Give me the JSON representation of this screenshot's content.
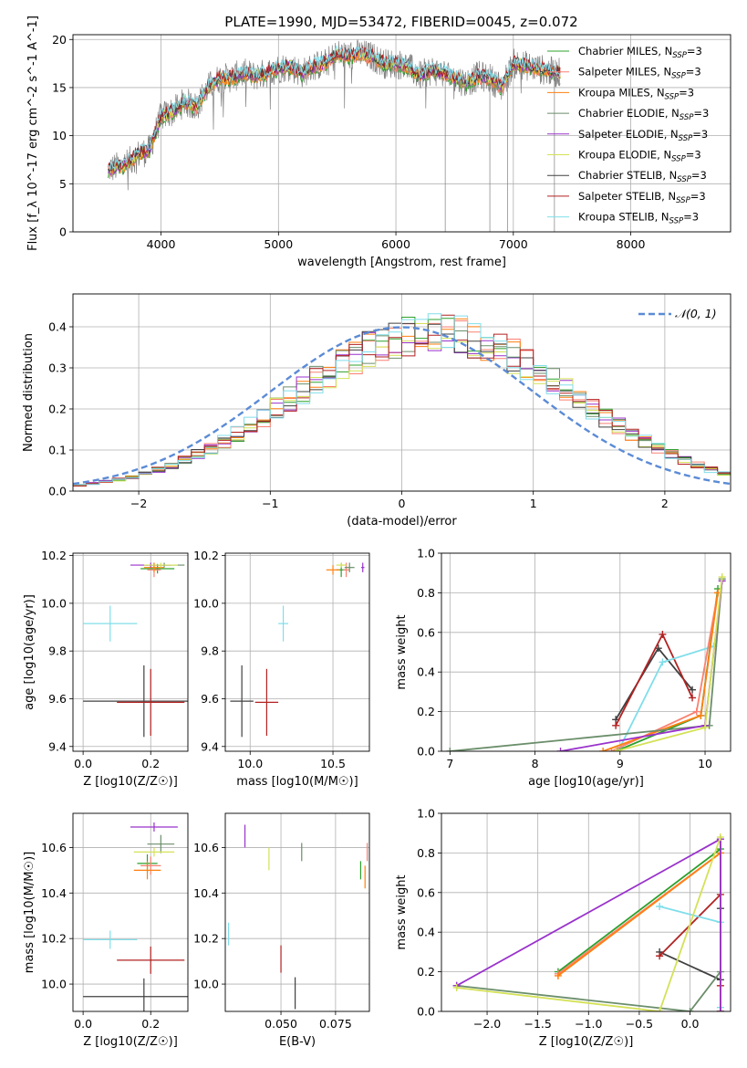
{
  "figure": {
    "title": "PLATE=1990, MJD=53472, FIBERID=0045, z=0.072"
  },
  "models": [
    {
      "name": "Chabrier MILES",
      "legend": "Chabrier MILES, N_SSP=3",
      "color": "#2ca02c"
    },
    {
      "name": "Salpeter MILES",
      "legend": "Salpeter MILES, N_SSP=3",
      "color": "#fa8072"
    },
    {
      "name": "Kroupa MILES",
      "legend": "Kroupa MILES, N_SSP=3",
      "color": "#ff7f0e"
    },
    {
      "name": "Chabrier ELODIE",
      "legend": "Chabrier ELODIE, N_SSP=3",
      "color": "#6b8e6b"
    },
    {
      "name": "Salpeter ELODIE",
      "legend": "Salpeter ELODIE, N_SSP=3",
      "color": "#9932cc"
    },
    {
      "name": "Kroupa ELODIE",
      "legend": "Kroupa ELODIE, N_SSP=3",
      "color": "#d4e157"
    },
    {
      "name": "Chabrier STELIB",
      "legend": "Chabrier STELIB, N_SSP=3",
      "color": "#404040"
    },
    {
      "name": "Salpeter STELIB",
      "legend": "Salpeter STELIB, N_SSP=3",
      "color": "#b22222"
    },
    {
      "name": "Kroupa STELIB",
      "legend": "Kroupa STELIB, N_SSP=3",
      "color": "#80deea"
    }
  ],
  "chart_data": [
    {
      "id": "spectrum",
      "type": "line",
      "title": "PLATE=1990, MJD=53472, FIBERID=0045, z=0.072",
      "xlabel": "wavelength [Angstrom, rest frame]",
      "ylabel": "Flux [f_λ 10^-17 erg cm^-2 s^-1 A^-1]",
      "xlim": [
        3250,
        8850
      ],
      "ylim": [
        0,
        20.5
      ],
      "xticks": [
        4000,
        5000,
        6000,
        7000,
        8000
      ],
      "yticks": [
        0,
        5,
        10,
        15,
        20
      ],
      "data_color": "#808080",
      "continuum": {
        "x": [
          3550,
          3700,
          3800,
          3900,
          4000,
          4100,
          4200,
          4300,
          4400,
          4500,
          4600,
          4700,
          4800,
          4900,
          5000,
          5100,
          5200,
          5300,
          5400,
          5500,
          5600,
          5700,
          5800,
          5900,
          6000,
          6100,
          6200,
          6300,
          6400,
          6500,
          6600,
          6700,
          6800,
          6900,
          7000,
          7100,
          7200,
          7300,
          7400
        ],
        "y": [
          6.5,
          7,
          8,
          8.5,
          12,
          12.5,
          13.5,
          13,
          15,
          16,
          16,
          16.5,
          16.2,
          16.5,
          17,
          17.2,
          16.5,
          17.2,
          17.5,
          18.5,
          18.3,
          18.5,
          18.2,
          17.5,
          17.5,
          17.2,
          16.2,
          16.8,
          16.5,
          16,
          15.5,
          16.2,
          16,
          15,
          17.5,
          17.3,
          17,
          16.7,
          16.5
        ]
      },
      "legend_loc": "upper right"
    },
    {
      "id": "residuals",
      "type": "histogram",
      "xlabel": "(data-model)/error",
      "ylabel": "Normed distribution",
      "xlim": [
        -2.5,
        2.5
      ],
      "ylim": [
        0,
        0.48
      ],
      "xticks": [
        -2,
        -1,
        0,
        1,
        2
      ],
      "yticks": [
        0.0,
        0.1,
        0.2,
        0.3,
        0.4
      ],
      "bin_width": 0.1,
      "reference": {
        "name": "N(0,1)",
        "label": "𝒩(0, 1)",
        "color": "#5b8bd6",
        "style": "dashed"
      },
      "legend_loc": "upper right"
    },
    {
      "id": "age_vs_Z",
      "type": "scatter",
      "xlabel": "Z [log10(Z/Z☉)]",
      "ylabel": "age [log10(age/yr)]",
      "xlim": [
        -0.03,
        0.31
      ],
      "ylim": [
        9.38,
        10.21
      ],
      "xticks": [
        0.0,
        0.2
      ],
      "yticks": [
        9.4,
        9.6,
        9.8,
        10.0,
        10.2
      ],
      "points": [
        {
          "model": "Chabrier STELIB",
          "x": 0.18,
          "xerr": 0.18,
          "y": 9.59,
          "yerr": 0.15
        },
        {
          "model": "Salpeter STELIB",
          "x": 0.2,
          "xerr": 0.1,
          "y": 9.585,
          "yerr": 0.14
        },
        {
          "model": "Kroupa STELIB",
          "x": 0.08,
          "xerr": 0.08,
          "y": 9.915,
          "yerr": 0.075
        },
        {
          "model": "Chabrier MILES",
          "x": 0.22,
          "xerr": 0.05,
          "y": 10.145,
          "yerr": 0.02
        },
        {
          "model": "Salpeter MILES",
          "x": 0.21,
          "xerr": 0.02,
          "y": 10.14,
          "yerr": 0.03
        },
        {
          "model": "Kroupa MILES",
          "x": 0.21,
          "xerr": 0.03,
          "y": 10.15,
          "yerr": 0.02
        },
        {
          "model": "Chabrier ELODIE",
          "x": 0.24,
          "xerr": 0.06,
          "y": 10.16,
          "yerr": 0.01
        },
        {
          "model": "Salpeter ELODIE",
          "x": 0.2,
          "xerr": 0.06,
          "y": 10.16,
          "yerr": 0.01
        },
        {
          "model": "Kroupa ELODIE",
          "x": 0.23,
          "xerr": 0.05,
          "y": 10.16,
          "yerr": 0.01
        }
      ]
    },
    {
      "id": "age_vs_mass",
      "type": "scatter",
      "xlabel": "mass [log10(M/M☉)]",
      "ylabel": "",
      "xlim": [
        9.85,
        10.72
      ],
      "ylim": [
        9.38,
        10.21
      ],
      "xticks": [
        10.0,
        10.5
      ],
      "yticks": [
        9.4,
        9.6,
        9.8,
        10.0,
        10.2
      ],
      "points": [
        {
          "model": "Chabrier STELIB",
          "x": 9.95,
          "xerr": 0.07,
          "y": 9.59,
          "yerr": 0.15
        },
        {
          "model": "Salpeter STELIB",
          "x": 10.1,
          "xerr": 0.07,
          "y": 9.585,
          "yerr": 0.14
        },
        {
          "model": "Kroupa STELIB",
          "x": 10.2,
          "xerr": 0.03,
          "y": 9.915,
          "yerr": 0.075
        },
        {
          "model": "Chabrier MILES",
          "x": 10.55,
          "xerr": 0.03,
          "y": 10.14,
          "yerr": 0.03
        },
        {
          "model": "Salpeter MILES",
          "x": 10.58,
          "xerr": 0.02,
          "y": 10.14,
          "yerr": 0.03
        },
        {
          "model": "Kroupa MILES",
          "x": 10.5,
          "xerr": 0.04,
          "y": 10.14,
          "yerr": 0.02
        },
        {
          "model": "Chabrier ELODIE",
          "x": 10.6,
          "xerr": 0.03,
          "y": 10.15,
          "yerr": 0.02
        },
        {
          "model": "Salpeter ELODIE",
          "x": 10.68,
          "xerr": 0.01,
          "y": 10.15,
          "yerr": 0.02
        },
        {
          "model": "Kroupa ELODIE",
          "x": 10.55,
          "xerr": 0.03,
          "y": 10.16,
          "yerr": 0.01
        }
      ]
    },
    {
      "id": "massweight_vs_age",
      "type": "line",
      "xlabel": "age [log10(age/yr)]",
      "ylabel": "mass weight",
      "xlim": [
        6.9,
        10.3
      ],
      "ylim": [
        0,
        1
      ],
      "xticks": [
        7,
        8,
        9,
        10
      ],
      "yticks": [
        0.0,
        0.2,
        0.4,
        0.6,
        0.8,
        1.0
      ],
      "series": [
        {
          "model": "Chabrier STELIB",
          "x": [
            8.95,
            9.45,
            9.85
          ],
          "y": [
            0.16,
            0.52,
            0.31
          ]
        },
        {
          "model": "Salpeter STELIB",
          "x": [
            8.95,
            9.5,
            9.85
          ],
          "y": [
            0.13,
            0.59,
            0.27
          ]
        },
        {
          "model": "Kroupa STELIB",
          "x": [
            9.0,
            9.5,
            10.1
          ],
          "y": [
            0.02,
            0.45,
            0.53
          ]
        },
        {
          "model": "Chabrier MILES",
          "x": [
            8.95,
            9.95,
            10.15
          ],
          "y": [
            0.0,
            0.18,
            0.82
          ]
        },
        {
          "model": "Salpeter MILES",
          "x": [
            8.9,
            9.9,
            10.15
          ],
          "y": [
            0.0,
            0.2,
            0.8
          ]
        },
        {
          "model": "Kroupa MILES",
          "x": [
            8.8,
            9.95,
            10.15
          ],
          "y": [
            0.0,
            0.18,
            0.8
          ]
        },
        {
          "model": "Chabrier ELODIE",
          "x": [
            7.0,
            10.05,
            10.2
          ],
          "y": [
            0.0,
            0.13,
            0.87
          ]
        },
        {
          "model": "Salpeter ELODIE",
          "x": [
            8.3,
            10.0,
            10.2
          ],
          "y": [
            0.0,
            0.13,
            0.86
          ]
        },
        {
          "model": "Kroupa ELODIE",
          "x": [
            8.95,
            10.0,
            10.2
          ],
          "y": [
            0.0,
            0.12,
            0.88
          ]
        }
      ]
    },
    {
      "id": "mass_vs_Z",
      "type": "scatter",
      "xlabel": "Z [log10(Z/Z☉)]",
      "ylabel": "mass [log10(M/M☉)]",
      "xlim": [
        -0.03,
        0.31
      ],
      "ylim": [
        9.88,
        10.75
      ],
      "xticks": [
        0.0,
        0.2
      ],
      "yticks": [
        10.0,
        10.2,
        10.4,
        10.6
      ],
      "points": [
        {
          "model": "Chabrier STELIB",
          "x": 0.18,
          "xerr": 0.18,
          "y": 9.945,
          "yerr": 0.08
        },
        {
          "model": "Salpeter STELIB",
          "x": 0.2,
          "xerr": 0.1,
          "y": 10.105,
          "yerr": 0.06
        },
        {
          "model": "Kroupa STELIB",
          "x": 0.08,
          "xerr": 0.08,
          "y": 10.195,
          "yerr": 0.04
        },
        {
          "model": "Chabrier MILES",
          "x": 0.19,
          "xerr": 0.03,
          "y": 10.53,
          "yerr": 0.04
        },
        {
          "model": "Salpeter MILES",
          "x": 0.2,
          "xerr": 0.03,
          "y": 10.52,
          "yerr": 0.04
        },
        {
          "model": "Kroupa MILES",
          "x": 0.19,
          "xerr": 0.04,
          "y": 10.5,
          "yerr": 0.04
        },
        {
          "model": "Chabrier ELODIE",
          "x": 0.23,
          "xerr": 0.04,
          "y": 10.615,
          "yerr": 0.04
        },
        {
          "model": "Salpeter ELODIE",
          "x": 0.21,
          "xerr": 0.07,
          "y": 10.69,
          "yerr": 0.02
        },
        {
          "model": "Kroupa ELODIE",
          "x": 0.21,
          "xerr": 0.06,
          "y": 10.58,
          "yerr": 0.02
        }
      ]
    },
    {
      "id": "mass_vs_ebv",
      "type": "scatter",
      "xlabel": "E(B-V)",
      "ylabel": "",
      "xlim": [
        0.0245,
        0.0905
      ],
      "ylim": [
        9.88,
        10.75
      ],
      "xticks": [
        0.05,
        0.075
      ],
      "xticklabels": [
        "0.050",
        "0.075"
      ],
      "yticks": [
        10.0,
        10.2,
        10.4,
        10.6
      ],
      "points": [
        {
          "model": "Kroupa STELIB",
          "x": 0.026,
          "yerr": 0.05,
          "y": 10.22
        },
        {
          "model": "Salpeter STELIB",
          "x": 0.05,
          "yerr": 0.06,
          "y": 10.11
        },
        {
          "model": "Chabrier STELIB",
          "x": 0.0565,
          "yerr": 0.07,
          "y": 9.96
        },
        {
          "model": "Chabrier ELODIE",
          "x": 0.0595,
          "yerr": 0.04,
          "y": 10.58
        },
        {
          "model": "Kroupa ELODIE",
          "x": 0.0445,
          "yerr": 0.05,
          "y": 10.55
        },
        {
          "model": "Salpeter ELODIE",
          "x": 0.0335,
          "yerr": 0.05,
          "y": 10.65
        },
        {
          "model": "Chabrier MILES",
          "x": 0.0865,
          "yerr": 0.04,
          "y": 10.5
        },
        {
          "model": "Salpeter MILES",
          "x": 0.0895,
          "yerr": 0.04,
          "y": 10.58
        },
        {
          "model": "Kroupa MILES",
          "x": 0.0885,
          "yerr": 0.05,
          "y": 10.47
        }
      ]
    },
    {
      "id": "massweight_vs_Z",
      "type": "line",
      "xlabel": "Z [log10(Z/Z☉)]",
      "ylabel": "mass weight",
      "xlim": [
        -2.45,
        0.4
      ],
      "ylim": [
        0,
        1
      ],
      "xticks": [
        -2.0,
        -1.5,
        -1.0,
        -0.5,
        0.0
      ],
      "yticks": [
        0.0,
        0.2,
        0.4,
        0.6,
        0.8,
        1.0
      ],
      "series": [
        {
          "model": "Chabrier STELIB",
          "x": [
            -0.3,
            0.3,
            0.3
          ],
          "y": [
            0.3,
            0.16,
            0.52
          ]
        },
        {
          "model": "Salpeter STELIB",
          "x": [
            -0.3,
            0.3,
            0.3
          ],
          "y": [
            0.28,
            0.59,
            0.13
          ]
        },
        {
          "model": "Kroupa STELIB",
          "x": [
            -0.3,
            0.3,
            0.3
          ],
          "y": [
            0.53,
            0.45,
            0.02
          ]
        },
        {
          "model": "Chabrier MILES",
          "x": [
            -1.3,
            0.3,
            0.3
          ],
          "y": [
            0.2,
            0.82,
            0.0
          ]
        },
        {
          "model": "Salpeter MILES",
          "x": [
            -1.3,
            0.3,
            0.3
          ],
          "y": [
            0.19,
            0.8,
            0.0
          ]
        },
        {
          "model": "Kroupa MILES",
          "x": [
            -1.3,
            0.3,
            0.3
          ],
          "y": [
            0.18,
            0.8,
            0.0
          ]
        },
        {
          "model": "Chabrier ELODIE",
          "x": [
            -2.3,
            0.0,
            0.3,
            0.3
          ],
          "y": [
            0.13,
            0.0,
            0.2,
            0.87
          ]
        },
        {
          "model": "Salpeter ELODIE",
          "x": [
            -2.3,
            0.3,
            0.3
          ],
          "y": [
            0.13,
            0.87,
            0.0
          ]
        },
        {
          "model": "Kroupa ELODIE",
          "x": [
            -2.3,
            -0.3,
            0.3
          ],
          "y": [
            0.12,
            0.0,
            0.88
          ]
        }
      ]
    }
  ]
}
